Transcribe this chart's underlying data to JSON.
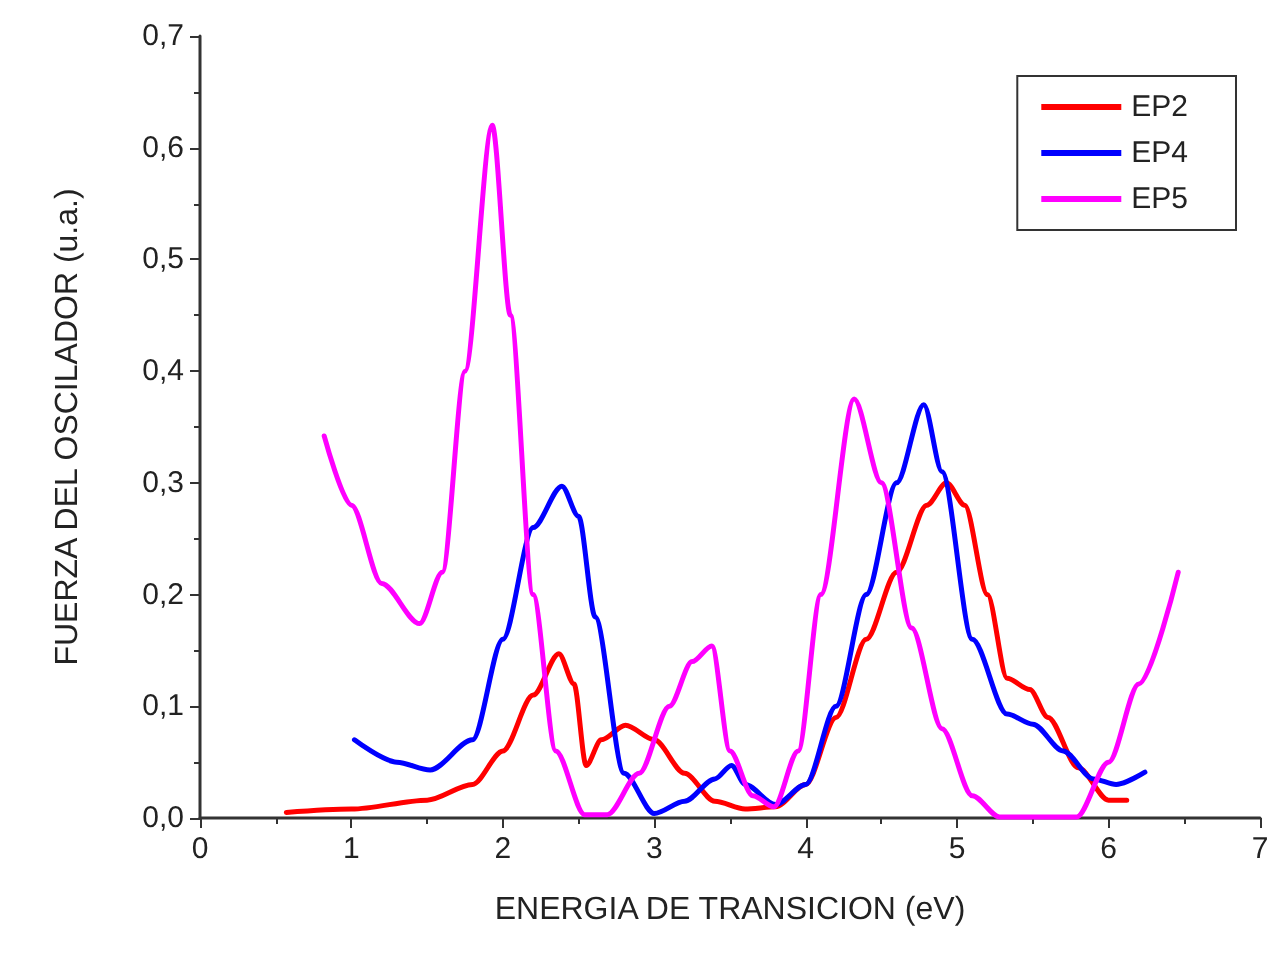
{
  "chart_data": {
    "type": "line",
    "xlabel": "ENERGIA DE TRANSICION (eV)",
    "ylabel": "FUERZA DEL OSCILADOR (u.a.)",
    "xlim": [
      0,
      7
    ],
    "xticks": [
      0,
      1,
      2,
      3,
      4,
      5,
      6,
      7
    ],
    "ylim": [
      0,
      0.7
    ],
    "yticks": [
      {
        "value": 0,
        "label": "0,0"
      },
      {
        "value": 0.1,
        "label": "0,1"
      },
      {
        "value": 0.2,
        "label": "0,2"
      },
      {
        "value": 0.3,
        "label": "0,3"
      },
      {
        "value": 0.4,
        "label": "0,4"
      },
      {
        "value": 0.5,
        "label": "0,5"
      },
      {
        "value": 0.6,
        "label": "0,6"
      },
      {
        "value": 0.7,
        "label": "0,7"
      }
    ],
    "grid": false,
    "legend": "top right",
    "marker": "none",
    "line_style": "solid",
    "series": [
      {
        "name": "EP2",
        "color": "#ff0000",
        "x": [
          0.57,
          1.0,
          1.5,
          1.8,
          2.0,
          2.2,
          2.37,
          2.47,
          2.55,
          2.65,
          2.81,
          3.0,
          3.2,
          3.4,
          3.6,
          3.8,
          4.0,
          4.2,
          4.4,
          4.6,
          4.8,
          4.93,
          5.05,
          5.2,
          5.33,
          5.48,
          5.6,
          5.8,
          6.0,
          6.12
        ],
        "values": [
          0.005,
          0.008,
          0.016,
          0.03,
          0.06,
          0.11,
          0.147,
          0.12,
          0.047,
          0.07,
          0.083,
          0.07,
          0.04,
          0.015,
          0.008,
          0.01,
          0.03,
          0.09,
          0.16,
          0.22,
          0.28,
          0.3,
          0.28,
          0.2,
          0.125,
          0.115,
          0.09,
          0.045,
          0.016,
          0.016
        ]
      },
      {
        "name": "EP4",
        "color": "#0000ff",
        "x": [
          1.02,
          1.3,
          1.52,
          1.8,
          2.0,
          2.2,
          2.39,
          2.5,
          2.61,
          2.8,
          3.0,
          3.2,
          3.4,
          3.51,
          3.6,
          3.8,
          4.0,
          4.2,
          4.4,
          4.6,
          4.78,
          4.9,
          5.1,
          5.33,
          5.5,
          5.7,
          5.9,
          6.05,
          6.24
        ],
        "values": [
          0.07,
          0.05,
          0.043,
          0.07,
          0.16,
          0.26,
          0.297,
          0.27,
          0.18,
          0.04,
          0.004,
          0.015,
          0.035,
          0.047,
          0.03,
          0.012,
          0.03,
          0.1,
          0.2,
          0.3,
          0.37,
          0.31,
          0.16,
          0.093,
          0.084,
          0.06,
          0.035,
          0.03,
          0.041
        ]
      },
      {
        "name": "EP5",
        "color": "#ff00ff",
        "x": [
          0.82,
          1.0,
          1.2,
          1.45,
          1.6,
          1.75,
          1.93,
          2.05,
          2.2,
          2.35,
          2.54,
          2.69,
          2.9,
          3.1,
          3.25,
          3.38,
          3.5,
          3.65,
          3.79,
          3.95,
          4.1,
          4.32,
          4.5,
          4.7,
          4.9,
          5.1,
          5.28,
          5.5,
          5.79,
          6.0,
          6.2,
          6.46
        ],
        "values": [
          0.342,
          0.28,
          0.21,
          0.174,
          0.22,
          0.4,
          0.62,
          0.45,
          0.2,
          0.06,
          0.003,
          0.003,
          0.04,
          0.1,
          0.14,
          0.154,
          0.06,
          0.02,
          0.01,
          0.06,
          0.2,
          0.375,
          0.3,
          0.17,
          0.08,
          0.02,
          0.001,
          0.001,
          0.001,
          0.05,
          0.12,
          0.22
        ]
      }
    ]
  }
}
